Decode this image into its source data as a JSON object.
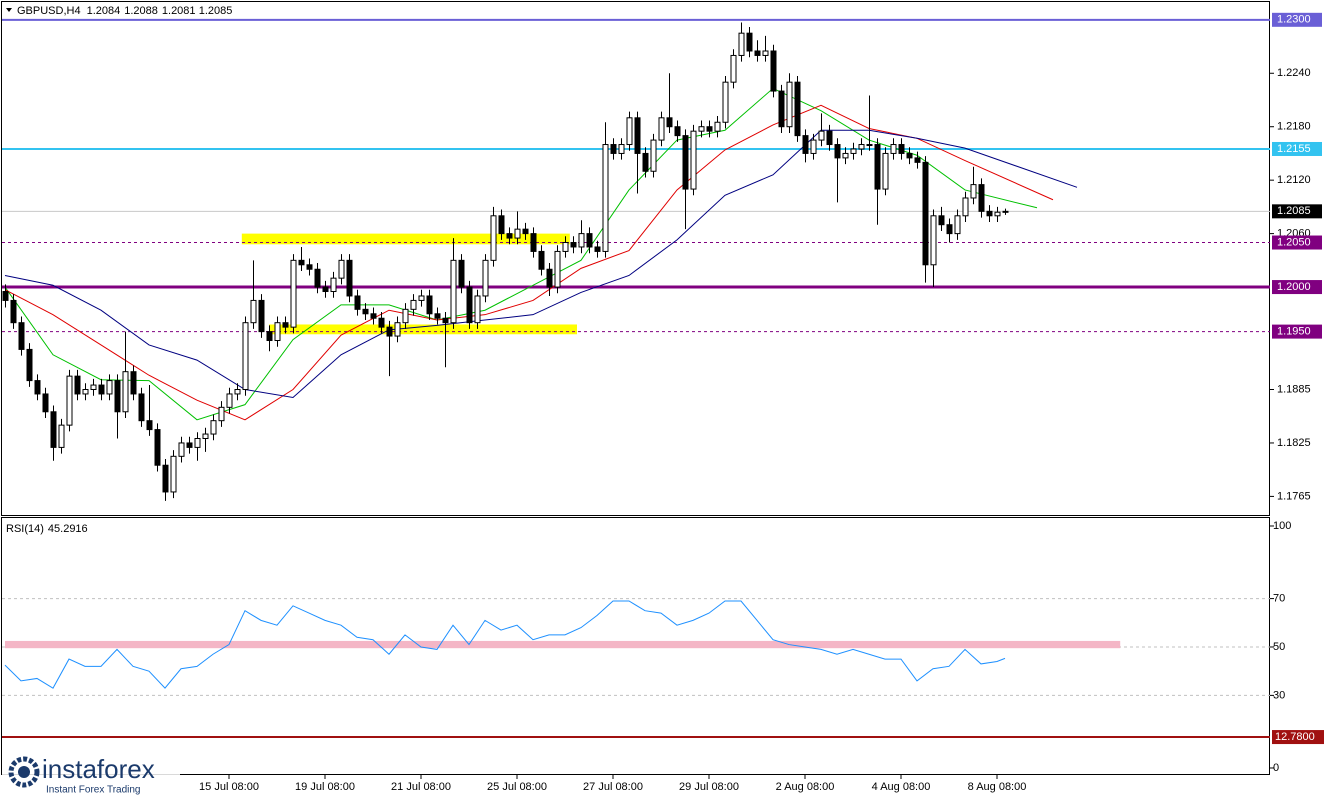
{
  "chart_data": {
    "type": "candlestick",
    "symbol": "GBPUSD,H4",
    "x_start": 0,
    "x_step": 8,
    "ylim": [
      1.1743,
      1.232
    ],
    "yticks": [
      {
        "value": 1.224,
        "label": "1.2240"
      },
      {
        "value": 1.218,
        "label": "1.2180"
      },
      {
        "value": 1.212,
        "label": "1.2120"
      },
      {
        "value": 1.206,
        "label": "1.2060"
      },
      {
        "value": 1.1885,
        "label": "1.1885"
      },
      {
        "value": 1.1825,
        "label": "1.1825"
      },
      {
        "value": 1.1765,
        "label": "1.1765"
      }
    ],
    "xticks": [
      {
        "value": 28,
        "label": "15 Jul 08:00"
      },
      {
        "value": 40,
        "label": "19 Jul 08:00"
      },
      {
        "value": 52,
        "label": "21 Jul 08:00"
      },
      {
        "value": 64,
        "label": "25 Jul 08:00"
      },
      {
        "value": 76,
        "label": "27 Jul 08:00"
      },
      {
        "value": 88,
        "label": "29 Jul 08:00"
      },
      {
        "value": 100,
        "label": "2 Aug 08:00"
      },
      {
        "value": 112,
        "label": "4 Aug 08:00"
      },
      {
        "value": 124,
        "label": "8 Aug 08:00"
      }
    ],
    "up_color": "#ffffff",
    "down_color": "#000000",
    "ohlc": [
      [
        1.1995,
        1.2003,
        1.1977,
        1.1985
      ],
      [
        1.1985,
        1.1992,
        1.1953,
        1.196
      ],
      [
        1.196,
        1.1967,
        1.1923,
        1.193
      ],
      [
        1.193,
        1.1937,
        1.1888,
        1.1895
      ],
      [
        1.1895,
        1.1902,
        1.1873,
        1.188
      ],
      [
        1.188,
        1.1887,
        1.1853,
        1.186
      ],
      [
        1.186,
        1.1867,
        1.1805,
        1.182
      ],
      [
        1.182,
        1.1852,
        1.1813,
        1.1845
      ],
      [
        1.1845,
        1.1907,
        1.1838,
        1.19
      ],
      [
        1.19,
        1.1907,
        1.1873,
        1.188
      ],
      [
        1.188,
        1.1892,
        1.1873,
        1.1885
      ],
      [
        1.1885,
        1.1897,
        1.1878,
        1.189
      ],
      [
        1.189,
        1.1897,
        1.1873,
        1.188
      ],
      [
        1.188,
        1.1902,
        1.1873,
        1.1895
      ],
      [
        1.1895,
        1.1902,
        1.183,
        1.186
      ],
      [
        1.186,
        1.195,
        1.1853,
        1.1905
      ],
      [
        1.1905,
        1.1912,
        1.1873,
        1.188
      ],
      [
        1.188,
        1.1887,
        1.1843,
        1.185
      ],
      [
        1.185,
        1.189,
        1.1833,
        1.184
      ],
      [
        1.184,
        1.1847,
        1.1793,
        1.18
      ],
      [
        1.18,
        1.1807,
        1.176,
        1.177
      ],
      [
        1.177,
        1.1817,
        1.1763,
        1.181
      ],
      [
        1.181,
        1.1832,
        1.1803,
        1.1825
      ],
      [
        1.1825,
        1.1832,
        1.1813,
        1.182
      ],
      [
        1.182,
        1.1837,
        1.1805,
        1.183
      ],
      [
        1.183,
        1.1842,
        1.1815,
        1.1835
      ],
      [
        1.1835,
        1.1857,
        1.1828,
        1.185
      ],
      [
        1.185,
        1.1872,
        1.1843,
        1.1865
      ],
      [
        1.1865,
        1.1887,
        1.1858,
        1.188
      ],
      [
        1.188,
        1.1892,
        1.1873,
        1.1885
      ],
      [
        1.1885,
        1.1967,
        1.1878,
        1.196
      ],
      [
        1.196,
        1.203,
        1.1953,
        1.1985
      ],
      [
        1.1985,
        1.1992,
        1.1943,
        1.195
      ],
      [
        1.195,
        1.1957,
        1.1928,
        1.194
      ],
      [
        1.194,
        1.1967,
        1.1933,
        1.196
      ],
      [
        1.196,
        1.1967,
        1.1948,
        1.1955
      ],
      [
        1.1955,
        1.2037,
        1.1948,
        1.203
      ],
      [
        1.203,
        1.2045,
        1.2018,
        1.2025
      ],
      [
        1.2025,
        1.2032,
        1.2013,
        1.202
      ],
      [
        1.202,
        1.2027,
        1.1993,
        1.2
      ],
      [
        1.2,
        1.2007,
        1.1988,
        1.1995
      ],
      [
        1.1995,
        1.2017,
        1.1988,
        1.201
      ],
      [
        1.201,
        1.2037,
        1.2003,
        1.203
      ],
      [
        1.203,
        1.2037,
        1.1983,
        1.199
      ],
      [
        1.199,
        1.1997,
        1.1968,
        1.1975
      ],
      [
        1.1975,
        1.1982,
        1.1963,
        1.197
      ],
      [
        1.197,
        1.1977,
        1.1958,
        1.1965
      ],
      [
        1.1965,
        1.1972,
        1.1948,
        1.1955
      ],
      [
        1.1955,
        1.1962,
        1.19,
        1.1945
      ],
      [
        1.1945,
        1.1967,
        1.1938,
        1.196
      ],
      [
        1.196,
        1.1982,
        1.1953,
        1.1975
      ],
      [
        1.1975,
        1.1992,
        1.1968,
        1.1985
      ],
      [
        1.1985,
        1.1997,
        1.1978,
        1.199
      ],
      [
        1.199,
        1.1997,
        1.1963,
        1.197
      ],
      [
        1.197,
        1.1977,
        1.1958,
        1.1965
      ],
      [
        1.1965,
        1.1972,
        1.191,
        1.196
      ],
      [
        1.196,
        1.2055,
        1.1953,
        1.203
      ],
      [
        1.203,
        1.2037,
        1.1993,
        1.2
      ],
      [
        1.2,
        1.2007,
        1.1953,
        1.196
      ],
      [
        1.196,
        1.1997,
        1.1953,
        1.199
      ],
      [
        1.199,
        1.2037,
        1.1983,
        1.203
      ],
      [
        1.203,
        1.209,
        1.2023,
        1.208
      ],
      [
        1.208,
        1.2087,
        1.2053,
        1.206
      ],
      [
        1.206,
        1.2067,
        1.2048,
        1.2055
      ],
      [
        1.2055,
        1.2085,
        1.2048,
        1.2065
      ],
      [
        1.2065,
        1.2072,
        1.2053,
        1.206
      ],
      [
        1.206,
        1.2067,
        1.2033,
        1.204
      ],
      [
        1.204,
        1.2047,
        1.2013,
        1.202
      ],
      [
        1.202,
        1.2027,
        1.199,
        1.2
      ],
      [
        1.2,
        1.2047,
        1.1993,
        1.204
      ],
      [
        1.204,
        1.2057,
        1.2033,
        1.205
      ],
      [
        1.205,
        1.2057,
        1.2038,
        1.2045
      ],
      [
        1.2045,
        1.2075,
        1.2038,
        1.206
      ],
      [
        1.206,
        1.2067,
        1.2038,
        1.2045
      ],
      [
        1.2045,
        1.2052,
        1.2033,
        1.204
      ],
      [
        1.204,
        1.2185,
        1.2033,
        1.216
      ],
      [
        1.216,
        1.2167,
        1.2143,
        1.215
      ],
      [
        1.215,
        1.2167,
        1.2143,
        1.216
      ],
      [
        1.216,
        1.2197,
        1.2153,
        1.219
      ],
      [
        1.219,
        1.2197,
        1.2105,
        1.215
      ],
      [
        1.215,
        1.2157,
        1.2123,
        1.213
      ],
      [
        1.213,
        1.2172,
        1.2123,
        1.2165
      ],
      [
        1.2165,
        1.2197,
        1.2158,
        1.219
      ],
      [
        1.219,
        1.224,
        1.2173,
        1.218
      ],
      [
        1.218,
        1.2187,
        1.2163,
        1.217
      ],
      [
        1.217,
        1.2177,
        1.2065,
        1.211
      ],
      [
        1.211,
        1.2182,
        1.2103,
        1.2175
      ],
      [
        1.2175,
        1.2187,
        1.2168,
        1.218
      ],
      [
        1.218,
        1.2187,
        1.2168,
        1.2175
      ],
      [
        1.2175,
        1.2192,
        1.2168,
        1.2185
      ],
      [
        1.2185,
        1.2237,
        1.2178,
        1.223
      ],
      [
        1.223,
        1.2267,
        1.2223,
        1.226
      ],
      [
        1.226,
        1.2297,
        1.2253,
        1.2285
      ],
      [
        1.2285,
        1.2292,
        1.2258,
        1.2265
      ],
      [
        1.2265,
        1.2277,
        1.2253,
        1.226
      ],
      [
        1.226,
        1.2282,
        1.2253,
        1.2265
      ],
      [
        1.2265,
        1.2272,
        1.2213,
        1.222
      ],
      [
        1.222,
        1.2227,
        1.2173,
        1.218
      ],
      [
        1.218,
        1.224,
        1.2173,
        1.223
      ],
      [
        1.223,
        1.2237,
        1.2163,
        1.217
      ],
      [
        1.217,
        1.2177,
        1.214,
        1.215
      ],
      [
        1.215,
        1.2172,
        1.2143,
        1.2165
      ],
      [
        1.2165,
        1.2195,
        1.2158,
        1.2175
      ],
      [
        1.2175,
        1.2182,
        1.2153,
        1.216
      ],
      [
        1.216,
        1.2167,
        1.2095,
        1.2145
      ],
      [
        1.2145,
        1.2157,
        1.2138,
        1.215
      ],
      [
        1.215,
        1.2162,
        1.2143,
        1.2155
      ],
      [
        1.2155,
        1.2167,
        1.2148,
        1.216
      ],
      [
        1.216,
        1.2215,
        1.2153,
        1.216
      ],
      [
        1.216,
        1.2167,
        1.207,
        1.211
      ],
      [
        1.211,
        1.2157,
        1.2103,
        1.215
      ],
      [
        1.215,
        1.2167,
        1.2143,
        1.216
      ],
      [
        1.216,
        1.2167,
        1.2143,
        1.215
      ],
      [
        1.215,
        1.2157,
        1.2138,
        1.2145
      ],
      [
        1.2145,
        1.2152,
        1.2133,
        1.214
      ],
      [
        1.214,
        1.2147,
        1.2005,
        1.2025
      ],
      [
        1.2025,
        1.2087,
        1.2,
        1.208
      ],
      [
        1.208,
        1.209,
        1.2063,
        1.207
      ],
      [
        1.207,
        1.2077,
        1.205,
        1.206
      ],
      [
        1.206,
        1.2087,
        1.2053,
        1.208
      ],
      [
        1.208,
        1.2107,
        1.2073,
        1.21
      ],
      [
        1.21,
        1.2135,
        1.2093,
        1.2115
      ],
      [
        1.2115,
        1.2122,
        1.2078,
        1.2085
      ],
      [
        1.2085,
        1.2092,
        1.2073,
        1.208
      ],
      [
        1.208,
        1.209,
        1.2073,
        1.2084
      ],
      [
        1.2084,
        1.2088,
        1.2081,
        1.2085
      ]
    ],
    "moving_averages": [
      {
        "color": "#00c000",
        "x": [
          0,
          6,
          12,
          18,
          24,
          30,
          36,
          42,
          48,
          54,
          60,
          66,
          72,
          78,
          84,
          90,
          96,
          102,
          108,
          114,
          120,
          129
        ],
        "values": [
          1.2,
          1.1924,
          1.1896,
          1.1895,
          1.1851,
          1.1868,
          1.1941,
          1.198,
          1.198,
          1.1963,
          1.1974,
          1.2002,
          1.203,
          1.2109,
          1.2165,
          1.2176,
          1.2223,
          1.2198,
          1.2165,
          1.2148,
          1.2109,
          1.2089
        ]
      },
      {
        "color": "#e00000",
        "x": [
          0,
          6,
          12,
          18,
          24,
          30,
          36,
          42,
          48,
          54,
          60,
          66,
          72,
          78,
          84,
          90,
          96,
          102,
          108,
          114,
          120,
          131
        ],
        "values": [
          1.1997,
          1.1969,
          1.1935,
          1.1901,
          1.1873,
          1.1851,
          1.1885,
          1.1946,
          1.1974,
          1.1963,
          1.1969,
          1.1985,
          1.2021,
          1.2041,
          1.2109,
          1.2154,
          1.2182,
          1.2204,
          1.2178,
          1.2167,
          1.2142,
          1.2098
        ]
      },
      {
        "color": "#000080",
        "x": [
          0,
          6,
          12,
          18,
          24,
          30,
          36,
          42,
          48,
          54,
          60,
          66,
          72,
          78,
          84,
          90,
          96,
          102,
          108,
          114,
          120,
          134
        ],
        "values": [
          1.2013,
          1.2002,
          1.1974,
          1.1935,
          1.1918,
          1.1885,
          1.1876,
          1.1924,
          1.1952,
          1.1957,
          1.1963,
          1.1969,
          1.1994,
          1.2013,
          1.2053,
          1.2103,
          1.2126,
          1.2176,
          1.2176,
          1.2167,
          1.2156,
          1.2112
        ]
      }
    ],
    "levels": [
      {
        "value": 1.23,
        "label": "1.2300",
        "color": "#6a5fd6",
        "box": "#6a5fd6",
        "width": 2,
        "dash": false
      },
      {
        "value": 1.2155,
        "label": "1.2155",
        "color": "#33c3f0",
        "box": "#33c3f0",
        "width": 2,
        "dash": false
      },
      {
        "value": 1.2085,
        "label": "1.2085",
        "color": "#c8c8c8",
        "box": "#000000",
        "width": 1,
        "dash": false
      },
      {
        "value": 1.205,
        "label": "1.2050",
        "color": "#800080",
        "box": "#800080",
        "width": 1,
        "dash": true
      },
      {
        "value": 1.2,
        "label": "1.2000",
        "color": "#800080",
        "box": "#800080",
        "width": 3,
        "dash": false
      },
      {
        "value": 1.195,
        "label": "1.1950",
        "color": "#800080",
        "box": "#800080",
        "width": 1,
        "dash": true
      }
    ],
    "zones": [
      {
        "color": "#ffff00",
        "x": [
          29.6,
          70.6
        ],
        "y": [
          1.2048,
          1.206
        ]
      },
      {
        "color": "#ffff00",
        "x": [
          33,
          71.5
        ],
        "y": [
          1.1947,
          1.1958
        ]
      }
    ],
    "rsi": {
      "name": "RSI(14)",
      "color": "#1e90ff",
      "ylim": [
        -2.9,
        103.3
      ],
      "yticks": [
        100,
        70,
        50,
        30,
        0
      ],
      "grid": [
        70,
        50,
        30
      ],
      "x": [
        0,
        2,
        4,
        6,
        8,
        10,
        12,
        14,
        16,
        18,
        20,
        22,
        24,
        26,
        28,
        30,
        32,
        34,
        36,
        38,
        40,
        42,
        44,
        46,
        48,
        50,
        52,
        54,
        56,
        58,
        60,
        62,
        64,
        66,
        68,
        70,
        72,
        74,
        76,
        78,
        80,
        82,
        84,
        86,
        88,
        90,
        92,
        94,
        96,
        98,
        100,
        102,
        104,
        106,
        108,
        110,
        112,
        114,
        116,
        118,
        120,
        122,
        124,
        125
      ],
      "values": [
        42.5,
        36,
        37,
        33,
        45,
        42,
        42,
        49,
        42,
        40,
        33,
        41,
        42,
        47,
        51,
        65,
        61,
        59,
        67,
        64,
        61,
        59,
        54,
        53,
        47,
        55,
        50,
        49,
        59,
        51,
        61,
        57,
        59,
        53,
        55,
        55,
        58,
        63,
        69,
        69,
        65,
        64,
        59,
        61,
        64,
        69,
        69,
        61,
        53,
        51,
        50,
        49,
        47,
        49,
        47,
        45,
        45,
        36,
        41,
        42,
        49,
        43,
        44,
        45.2916
      ],
      "zone": {
        "color": "#f4b6c6",
        "x": [
          0,
          139.4
        ],
        "y": [
          49.5,
          52.5
        ]
      },
      "level": {
        "value": 12.78,
        "label": "12.7800",
        "color": "#a01010"
      }
    },
    "logo": {
      "name": "instaforex",
      "tagline": "Instant Forex Trading"
    }
  }
}
